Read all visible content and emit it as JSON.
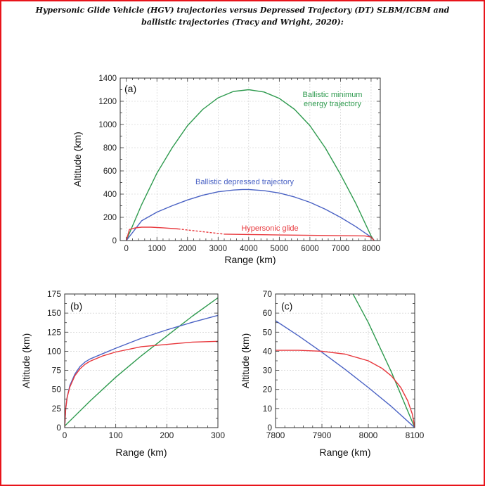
{
  "heading": {
    "line1": "Hypersonic Glide Vehicle (HGV) trajectories versus Depressed Trajectory (DT) SLBM/ICBM and",
    "line2": "ballistic trajectories (Tracy and Wright, 2020):"
  },
  "colors": {
    "frame_border": "#e8141b",
    "ballistic_minimum_energy": "#2e9a4e",
    "ballistic_depressed": "#4a62c4",
    "hypersonic_glide": "#e8383d"
  },
  "chart_data": [
    {
      "id": "a",
      "panel_label": "(a)",
      "type": "line",
      "xlabel": "Range (km)",
      "ylabel": "Altitude (km)",
      "xlim": [
        -200,
        8300
      ],
      "ylim": [
        0,
        1400
      ],
      "xticks": [
        0,
        1000,
        2000,
        3000,
        4000,
        5000,
        6000,
        7000,
        8000
      ],
      "yticks": [
        0,
        200,
        400,
        600,
        800,
        1000,
        1200,
        1400
      ],
      "grid": true,
      "series": [
        {
          "name": "Ballistic minimum energy trajectory",
          "label_lines": [
            "Ballistic minimum",
            "energy trajectory"
          ],
          "color": "#2e9a4e",
          "style": "solid",
          "x": [
            0,
            500,
            1000,
            1500,
            2000,
            2500,
            3000,
            3500,
            4000,
            4500,
            5000,
            5500,
            6000,
            6500,
            7000,
            7500,
            8000,
            8100
          ],
          "y": [
            0,
            310,
            580,
            800,
            990,
            1130,
            1230,
            1285,
            1300,
            1280,
            1225,
            1130,
            990,
            800,
            570,
            320,
            40,
            0
          ]
        },
        {
          "name": "Ballistic depressed trajectory",
          "label_lines": [
            "Ballistic depressed trajectory"
          ],
          "color": "#4a62c4",
          "style": "solid",
          "x": [
            0,
            500,
            1000,
            1500,
            2000,
            2500,
            3000,
            3500,
            3800,
            4000,
            4500,
            5000,
            5500,
            6000,
            6500,
            7000,
            7500,
            8000,
            8100
          ],
          "y": [
            0,
            170,
            245,
            300,
            350,
            390,
            420,
            435,
            440,
            440,
            430,
            410,
            375,
            330,
            270,
            200,
            120,
            30,
            0
          ]
        },
        {
          "name": "Hypersonic glide",
          "label_lines": [
            "Hypersonic glide"
          ],
          "color": "#e8383d",
          "style": "solid",
          "x": [
            0,
            100,
            300,
            500,
            800,
            1200,
            1700
          ],
          "y": [
            0,
            95,
            110,
            115,
            115,
            110,
            100
          ]
        },
        {
          "name": "",
          "color": "#e8383d",
          "style": "dashed",
          "x": [
            1700,
            2200,
            2700,
            3200
          ],
          "y": [
            100,
            85,
            70,
            55
          ]
        },
        {
          "name": "",
          "color": "#e8383d",
          "style": "solid",
          "x": [
            3200,
            4000,
            5000,
            6000,
            7000,
            7800,
            8000,
            8100
          ],
          "y": [
            55,
            52,
            48,
            45,
            42,
            40,
            30,
            0
          ]
        }
      ]
    },
    {
      "id": "b",
      "panel_label": "(b)",
      "type": "line",
      "xlabel": "Range (km)",
      "ylabel": "Altitude (km)",
      "xlim": [
        0,
        300
      ],
      "ylim": [
        0,
        175
      ],
      "xticks": [
        0,
        100,
        200,
        300
      ],
      "yticks": [
        0,
        25,
        50,
        75,
        100,
        125,
        150,
        175
      ],
      "grid": true,
      "series": [
        {
          "name": "Ballistic minimum energy trajectory",
          "color": "#2e9a4e",
          "style": "solid",
          "x": [
            0,
            50,
            100,
            150,
            200,
            250,
            300
          ],
          "y": [
            2,
            35,
            66,
            94,
            120,
            146,
            170
          ]
        },
        {
          "name": "Ballistic depressed trajectory",
          "color": "#4a62c4",
          "style": "solid",
          "x": [
            0,
            2,
            5,
            10,
            20,
            30,
            40,
            50,
            75,
            100,
            150,
            200,
            250,
            300
          ],
          "y": [
            0,
            25,
            40,
            55,
            70,
            80,
            86,
            90,
            97,
            104,
            117,
            128,
            138,
            147
          ]
        },
        {
          "name": "Hypersonic glide",
          "color": "#e8383d",
          "style": "solid",
          "x": [
            0,
            2,
            5,
            10,
            20,
            30,
            40,
            50,
            75,
            100,
            150,
            200,
            250,
            300
          ],
          "y": [
            0,
            25,
            40,
            53,
            68,
            77,
            83,
            87,
            94,
            99,
            106,
            109,
            112,
            113
          ]
        }
      ]
    },
    {
      "id": "c",
      "panel_label": "(c)",
      "type": "line",
      "xlabel": "Range (km)",
      "ylabel": "Altitude (km)",
      "xlim": [
        7800,
        8100
      ],
      "ylim": [
        0,
        70
      ],
      "xticks": [
        7800,
        7900,
        8000,
        8100
      ],
      "yticks": [
        0,
        10,
        20,
        30,
        40,
        50,
        60,
        70
      ],
      "grid": true,
      "series": [
        {
          "name": "Ballistic minimum energy trajectory",
          "color": "#2e9a4e",
          "style": "solid",
          "x": [
            7967,
            8000,
            8050,
            8100
          ],
          "y": [
            70,
            55,
            29,
            0
          ]
        },
        {
          "name": "Ballistic depressed trajectory",
          "color": "#4a62c4",
          "style": "solid",
          "x": [
            7800,
            7850,
            7900,
            7950,
            8000,
            8050,
            8100
          ],
          "y": [
            56,
            48,
            39.5,
            30.5,
            21,
            11,
            0
          ]
        },
        {
          "name": "Hypersonic glide",
          "color": "#e8383d",
          "style": "solid",
          "x": [
            7800,
            7850,
            7900,
            7950,
            8000,
            8030,
            8050,
            8070,
            8085,
            8095,
            8100
          ],
          "y": [
            40.5,
            40.5,
            40,
            38.5,
            35,
            31,
            27,
            21,
            14,
            7,
            0
          ]
        }
      ]
    }
  ]
}
